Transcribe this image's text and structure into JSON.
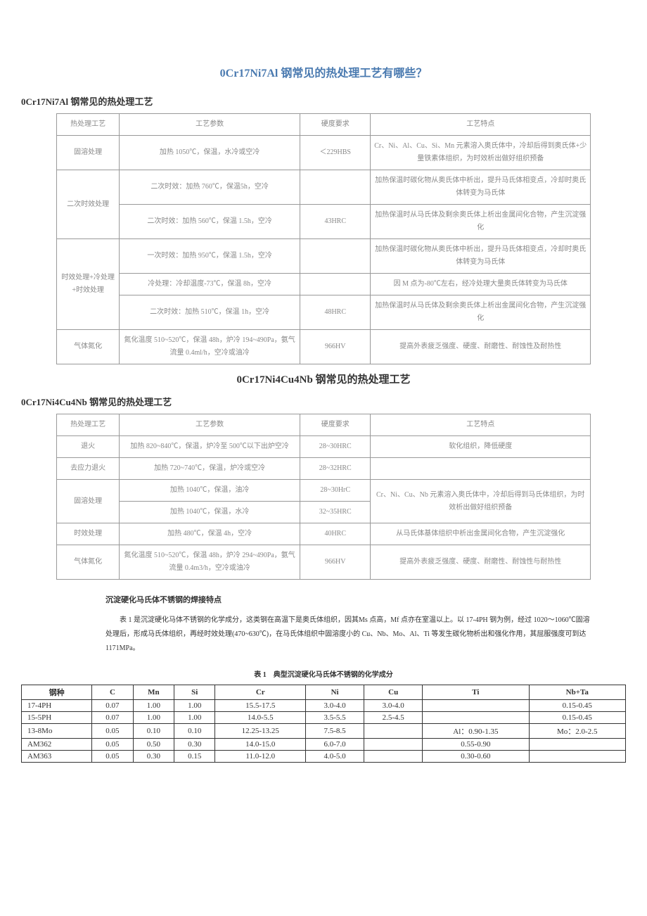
{
  "title1": "0Cr17Ni7Al 钢常见的热处理工艺有哪些？",
  "sub1": "0Cr17Ni7Al 钢常见的热处理工艺",
  "t1_headers": [
    "热处理工艺",
    "工艺参数",
    "硬度要求",
    "工艺特点"
  ],
  "t1_rows": [
    {
      "p": "固溶处理",
      "params": [
        "加热 1050℃，保温，水冷或空冷"
      ],
      "h": [
        "＜229HBS"
      ],
      "f": [
        "Cr、Ni、Al、Cu、Si、Mn 元素溶入奥氏体中，冷却后得到奥氏体+少量铁素体组织，为时效析出做好组织预备"
      ]
    },
    {
      "p": "二次时效处理",
      "params": [
        "二次时效：加热 760℃，保温5h，空冷",
        "二次时效：加热 560℃，保温 1.5h，空冷"
      ],
      "h": [
        "",
        "43HRC"
      ],
      "f": [
        "加热保温时碳化物从奥氏体中析出，提升马氏体相变点，冷却时奥氏体转变为马氏体",
        "加热保温时从马氏体及剩余奥氏体上析出金属间化合物，产生沉淀强化"
      ]
    },
    {
      "p": "时效处理+冷处理+时效处理",
      "params": [
        "一次时效：加热 950℃，保温 1.5h，空冷",
        "冷处理：冷却温度-73℃，保温 8h，空冷",
        "二次时效：加热 510℃，保温 1h，空冷"
      ],
      "h": [
        "",
        "",
        "48HRC"
      ],
      "f": [
        "加热保温时碳化物从奥氏体中析出，提升马氏体相变点，冷却时奥氏体转变为马氏体",
        "因 M 点为-80℃左右，经冷处理大量奥氏体转变为马氏体",
        "加热保温时从马氏体及剩余奥氏体上析出金属间化合物，产生沉淀强化"
      ]
    },
    {
      "p": "气体氮化",
      "params": [
        "氮化温度 510~520℃，保温 48h，炉冷 194~490Pa，氨气流量 0.4ml/h，空冷或油冷"
      ],
      "h": [
        "966HV"
      ],
      "f": [
        "提高外表疲乏强度、硬度、耐磨性、耐蚀性及耐热性"
      ]
    }
  ],
  "title2": "0Cr17Ni4Cu4Nb 钢常见的热处理工艺",
  "sub2": "0Cr17Ni4Cu4Nb 钢常见的热处理工艺",
  "t2_headers": [
    "热处理工艺",
    "工艺参数",
    "硬度要求",
    "工艺特点"
  ],
  "t2_rows": [
    {
      "p": "退火",
      "params": [
        "加热 820~840℃，保温，炉冷至 500℃以下出炉空冷"
      ],
      "h": [
        "28~30HRC"
      ],
      "f": [
        "软化组织，降低硬度"
      ]
    },
    {
      "p": "去应力退火",
      "params": [
        "加热 720~740℃，保温，炉冷或空冷"
      ],
      "h": [
        "28~32HRC"
      ],
      "f": [
        ""
      ]
    },
    {
      "p": "固溶处理",
      "params": [
        "加热 1040℃，保温，油冷",
        "加热 1040℃，保温，水冷"
      ],
      "h": [
        "28~30HrC",
        "32~35HRC"
      ],
      "f": [
        "Cr、Ni、Cu、Nb 元素溶入奥氏体中，冷却后得到马氏体组织，为时效析出做好组织预备"
      ]
    },
    {
      "p": "时效处理",
      "params": [
        "加热 480℃，保温 4h，空冷"
      ],
      "h": [
        "40HRC"
      ],
      "f": [
        "从马氏体基体组织中析出金属间化合物，产生沉淀强化"
      ]
    },
    {
      "p": "气体氮化",
      "params": [
        "氮化温度 510~520℃，保温 48h，炉冷 294~490Pa，氨气流量 0.4m3/h，空冷或油冷"
      ],
      "h": [
        "966HV"
      ],
      "f": [
        "提高外表疲乏强度、硬度、耐磨性、耐蚀性与耐热性"
      ]
    }
  ],
  "section_title": "沉淀硬化马氏体不锈钢的焊接特点",
  "paragraph": "表 1 是沉淀硬化马体不锈钢的化学成分，这类钢在高温下是奥氏体组织，因其Ms 点高，Mf 点亦在室温以上。以 17-4PH 钢为例，经过 1020～1060℃固溶处理后，形成马氏体组织，再经时效处理(470~630℃)，在马氏体组织中固溶度小的 Cu、Nb、Mo、Al、Ti 等发生碳化物析出和强化作用，其屈服强度可到达 1171MPa。",
  "t3_caption": "表 1　典型沉淀硬化马氏体不锈钢的化学成分",
  "t3_headers": [
    "钢种",
    "C",
    "Mn",
    "Si",
    "Cr",
    "Ni",
    "Cu",
    "Ti",
    "Nb+Ta"
  ],
  "t3_rows": [
    [
      "17-4PH",
      "0.07",
      "1.00",
      "1.00",
      "15.5-17.5",
      "3.0-4.0",
      "3.0-4.0",
      "",
      "0.15-0.45"
    ],
    [
      "15-5PH",
      "0.07",
      "1.00",
      "1.00",
      "14.0-5.5",
      "3.5-5.5",
      "2.5-4.5",
      "",
      "0.15-0.45"
    ],
    [
      "13-8Mo",
      "0.05",
      "0.10",
      "0.10",
      "12.25-13.25",
      "7.5-8.5",
      "",
      "Al：0.90-1.35",
      "Mo：2.0-2.5"
    ],
    [
      "AM362",
      "0.05",
      "0.50",
      "0.30",
      "14.0-15.0",
      "6.0-7.0",
      "",
      "0.55-0.90",
      ""
    ],
    [
      "AM363",
      "0.05",
      "0.30",
      "0.15",
      "11.0-12.0",
      "4.0-5.0",
      "",
      "0.30-0.60",
      ""
    ]
  ]
}
